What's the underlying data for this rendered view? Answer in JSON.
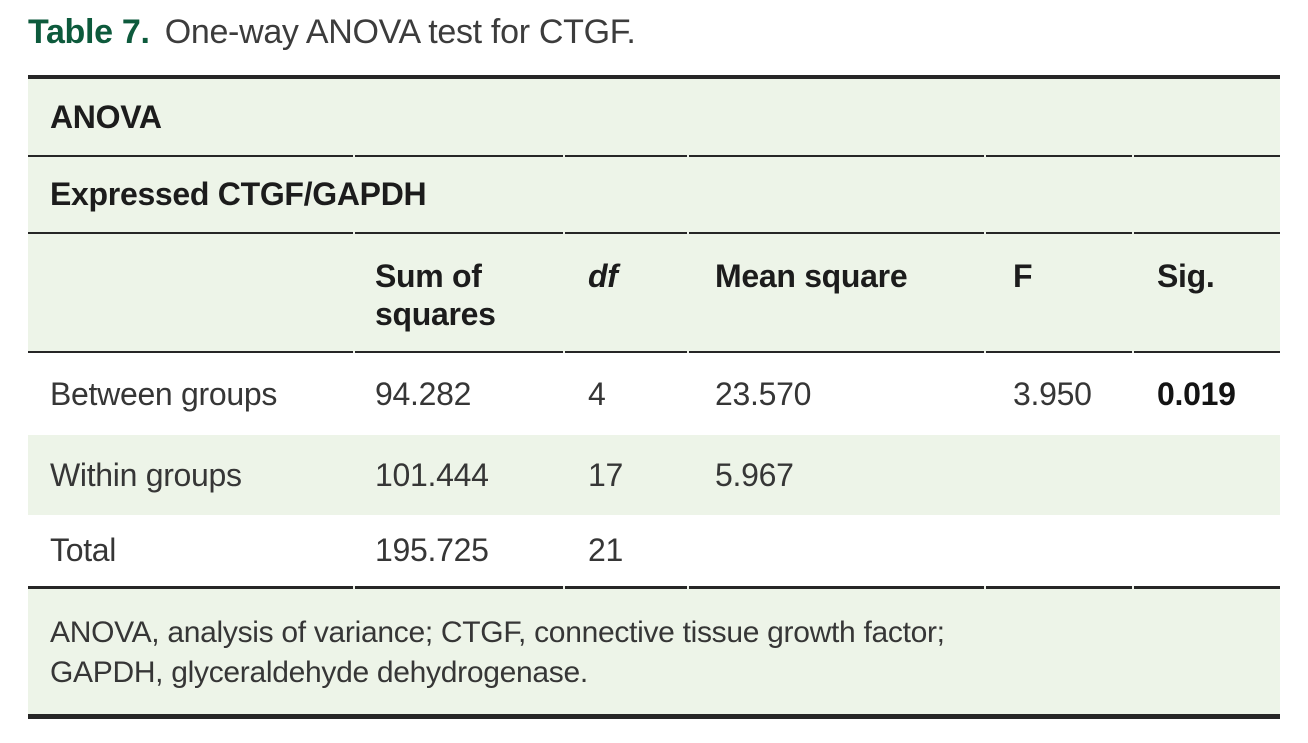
{
  "title": {
    "label": "Table 7.",
    "text": "One-way ANOVA test for CTGF."
  },
  "table": {
    "section_header": "ANOVA",
    "subsection_header": "Expressed CTGF/GAPDH",
    "columns": {
      "row_label": "",
      "sum_of_squares": "Sum of squares",
      "df": "df",
      "mean_square": "Mean square",
      "f": "F",
      "sig": "Sig."
    },
    "rows": [
      {
        "label": "Between groups",
        "sum_of_squares": "94.282",
        "df": "4",
        "mean_square": "23.570",
        "f": "3.950",
        "sig": "0.019"
      },
      {
        "label": "Within groups",
        "sum_of_squares": "101.444",
        "df": "17",
        "mean_square": "5.967",
        "f": "",
        "sig": ""
      },
      {
        "label": "Total",
        "sum_of_squares": "195.725",
        "df": "21",
        "mean_square": "",
        "f": "",
        "sig": ""
      }
    ],
    "footnote": {
      "line1": "ANOVA, analysis of variance; CTGF, connective tissue growth factor;",
      "line2": "GAPDH, glyceraldehyde dehydrogenase."
    }
  },
  "colors": {
    "accent_green": "#0d5a3c",
    "row_green": "#edf4e8",
    "border": "#262626"
  }
}
